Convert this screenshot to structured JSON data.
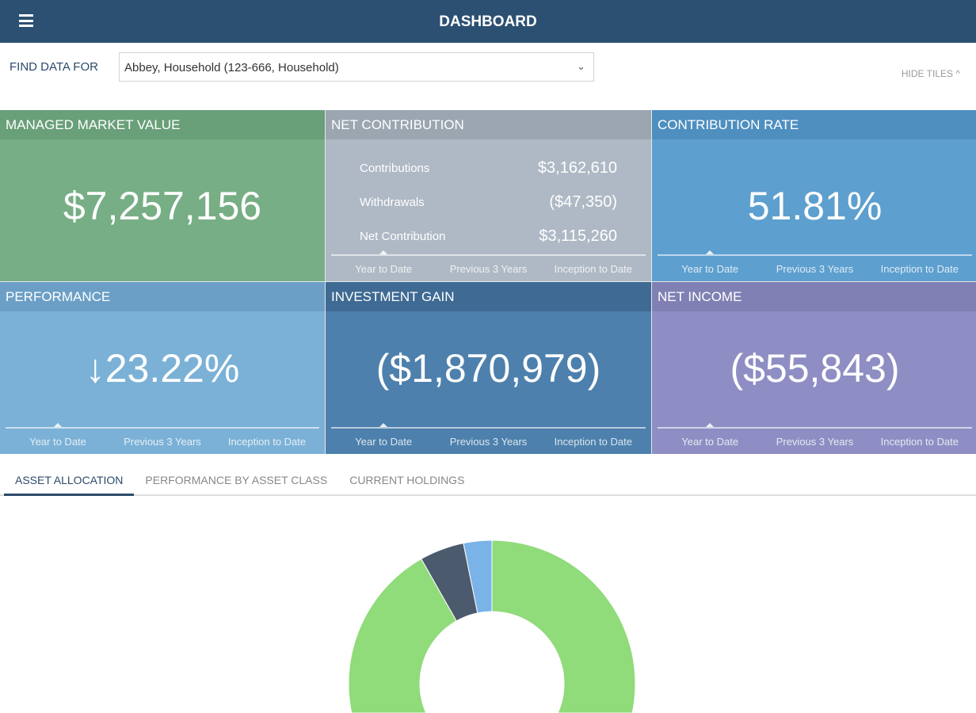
{
  "header": {
    "title": "DASHBOARD",
    "menu_icon": "hamburger-icon"
  },
  "filter": {
    "label": "FIND DATA FOR",
    "value": "Abbey, Household (123-666, Household)",
    "hide_tiles": "HIDE TILES ^"
  },
  "periods": [
    "Year to Date",
    "Previous 3 Years",
    "Inception to Date"
  ],
  "tiles": [
    {
      "title": "MANAGED MARKET VALUE",
      "value": "$7,257,156",
      "head": "#699f79",
      "body": "#77ae85"
    },
    {
      "title": "NET CONTRIBUTION",
      "head": "#9ba6b1",
      "body": "#afb9c5",
      "rows": [
        {
          "label": "Contributions",
          "value": "$3,162,610"
        },
        {
          "label": "Withdrawals",
          "value": "($47,350)"
        },
        {
          "label": "Net Contribution",
          "value": "$3,115,260"
        }
      ]
    },
    {
      "title": "CONTRIBUTION RATE",
      "value": "51.81%",
      "head": "#4e8fc0",
      "body": "#5d9fcf"
    },
    {
      "title": "PERFORMANCE",
      "value": "↓23.22%",
      "head": "#6b9fc6",
      "body": "#7bb1d6"
    },
    {
      "title": "INVESTMENT GAIN",
      "value": "($1,870,979)",
      "head": "#3e6a93",
      "body": "#4d80ac"
    },
    {
      "title": "NET INCOME",
      "value": "($55,843)",
      "head": "#8080b4",
      "body": "#8e8ec4"
    }
  ],
  "tabs": [
    "ASSET ALLOCATION",
    "PERFORMANCE BY ASSET CLASS",
    "CURRENT HOLDINGS"
  ],
  "chart_data": {
    "type": "pie",
    "donut": true,
    "values": [
      91.8,
      5.0,
      3.2
    ],
    "colors": [
      "#90db7a",
      "#4b5a6c",
      "#7ab3e8"
    ]
  }
}
